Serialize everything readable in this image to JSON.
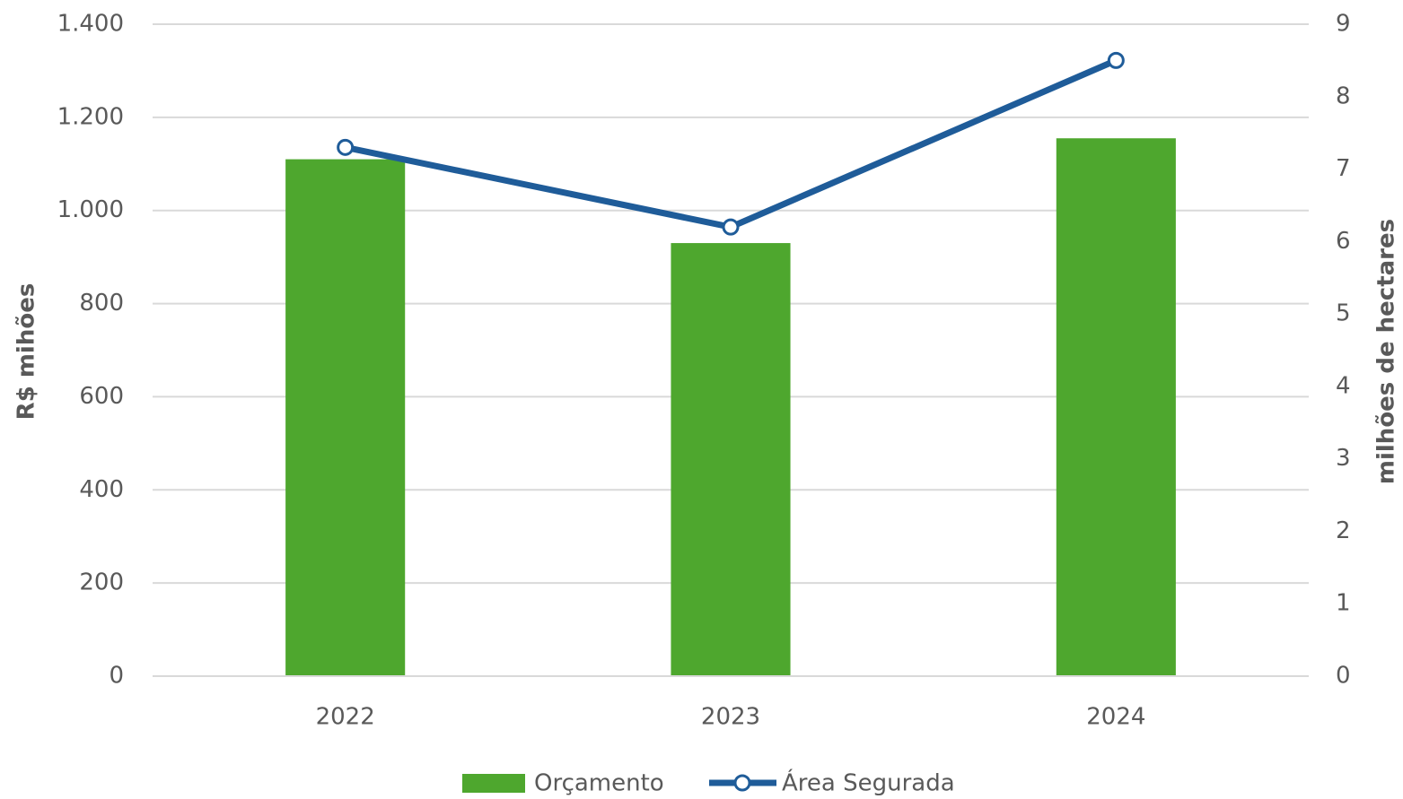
{
  "chart_data": {
    "type": "bar",
    "categories": [
      "2022",
      "2023",
      "2024"
    ],
    "series": [
      {
        "name": "Orçamento",
        "color": "#4ea72e",
        "type": "bar",
        "values": [
          1110,
          930,
          1155
        ]
      },
      {
        "name": "Área Segurada",
        "color": "#1f5c99",
        "type": "line",
        "axis": "y2",
        "values": [
          7.3,
          6.2,
          8.5
        ]
      }
    ],
    "ylabel": "R$ mihões",
    "y2label": "milhões de hectares",
    "ylim": [
      0,
      1400
    ],
    "yticks": [
      0,
      200,
      400,
      600,
      800,
      {
        "value": 1000,
        "label": "1.000"
      },
      {
        "value": 1200,
        "label": "1.200"
      },
      {
        "value": 1400,
        "label": "1.400"
      }
    ],
    "y2lim": [
      0,
      9
    ],
    "y2ticks": [
      0,
      1,
      2,
      3,
      4,
      5,
      6,
      7,
      8,
      9
    ],
    "grid": true,
    "legend": "bottom"
  }
}
